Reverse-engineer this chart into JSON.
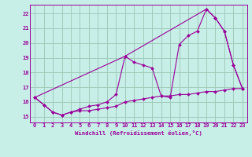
{
  "xlabel": "Windchill (Refroidissement éolien,°C)",
  "background_color": "#c8eee8",
  "grid_color": "#a0ccbb",
  "line_color": "#990099",
  "ylim": [
    14.6,
    22.6
  ],
  "xlim": [
    -0.5,
    23.5
  ],
  "yticks": [
    15,
    16,
    17,
    18,
    19,
    20,
    21,
    22
  ],
  "xticks": [
    0,
    1,
    2,
    3,
    4,
    5,
    6,
    7,
    8,
    9,
    10,
    11,
    12,
    13,
    14,
    15,
    16,
    17,
    18,
    19,
    20,
    21,
    22,
    23
  ],
  "series1_x": [
    0,
    1,
    2,
    3,
    4,
    5,
    6,
    7,
    8,
    9,
    10,
    11,
    12,
    13,
    14,
    15,
    16,
    17,
    18,
    19,
    20,
    21,
    22,
    23
  ],
  "series1_y": [
    16.3,
    15.8,
    15.3,
    15.1,
    15.3,
    15.4,
    15.4,
    15.5,
    15.6,
    15.7,
    16.0,
    16.1,
    16.2,
    16.3,
    16.4,
    16.4,
    16.5,
    16.5,
    16.6,
    16.7,
    16.7,
    16.8,
    16.9,
    16.9
  ],
  "series2_x": [
    0,
    1,
    2,
    3,
    4,
    5,
    6,
    7,
    8,
    9,
    10,
    11,
    12,
    13,
    14,
    15,
    16,
    17,
    18,
    19,
    20,
    21,
    22,
    23
  ],
  "series2_y": [
    16.3,
    15.8,
    15.3,
    15.1,
    15.3,
    15.5,
    15.7,
    15.8,
    16.0,
    16.5,
    19.1,
    18.7,
    18.5,
    18.3,
    16.4,
    16.3,
    19.9,
    20.5,
    20.8,
    22.3,
    21.7,
    20.8,
    18.5,
    16.9
  ],
  "series3_x": [
    0,
    10,
    19,
    20,
    21,
    22,
    23
  ],
  "series3_y": [
    16.3,
    19.1,
    22.3,
    21.7,
    20.8,
    18.5,
    16.9
  ]
}
